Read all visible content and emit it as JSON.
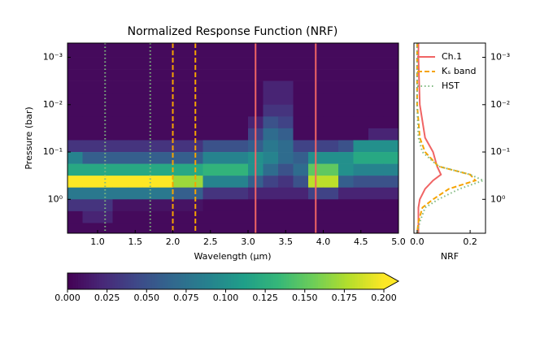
{
  "chart_data": [
    {
      "type": "heatmap",
      "title": "Normalized Response Function (NRF)",
      "xlabel": "Wavelength (μm)",
      "ylabel": "Pressure (bar)",
      "xlim": [
        0.6,
        5.0
      ],
      "ylim": [
        0.0005,
        5.2
      ],
      "log_y": true,
      "xticks": [
        {
          "value": 1,
          "label": "1.0"
        },
        1.5,
        {
          "value": 2,
          "label": "2.0"
        },
        2.5,
        {
          "value": 3,
          "label": "3.0"
        },
        3.5,
        {
          "value": 4,
          "label": "4.0"
        },
        4.5,
        {
          "value": 5,
          "label": "5.0"
        }
      ],
      "yticks": [
        {
          "value": 0.001,
          "label": "10⁻³"
        },
        {
          "value": 0.01,
          "label": "10⁻²"
        },
        {
          "value": 0.1,
          "label": "10⁻¹"
        },
        {
          "value": 1,
          "label": "10⁰"
        }
      ],
      "x_edges": [
        0.6,
        0.8,
        1.0,
        1.2,
        1.4,
        1.6,
        1.8,
        2.0,
        2.2,
        2.4,
        2.6,
        2.8,
        3.0,
        3.2,
        3.4,
        3.6,
        3.8,
        4.0,
        4.2,
        4.4,
        4.6,
        4.8,
        5.0
      ],
      "y_edges": [
        0.0005,
        0.001,
        0.00178,
        0.00316,
        0.00562,
        0.01,
        0.0178,
        0.0316,
        0.0562,
        0.1,
        0.178,
        0.316,
        0.562,
        1,
        1.78,
        3.16,
        5.2
      ],
      "values": [
        [
          0.005,
          0.005,
          0.005,
          0.005,
          0.005,
          0.005,
          0.005,
          0.005,
          0.005,
          0.005,
          0.005,
          0.005,
          0.005,
          0.005,
          0.005,
          0.005,
          0.005,
          0.005,
          0.005,
          0.005,
          0.005,
          0.005
        ],
        [
          0.005,
          0.005,
          0.005,
          0.005,
          0.005,
          0.005,
          0.005,
          0.005,
          0.005,
          0.005,
          0.005,
          0.005,
          0.005,
          0.005,
          0.005,
          0.005,
          0.005,
          0.005,
          0.005,
          0.005,
          0.005,
          0.005
        ],
        [
          0.005,
          0.005,
          0.005,
          0.005,
          0.005,
          0.005,
          0.005,
          0.005,
          0.005,
          0.005,
          0.005,
          0.005,
          0.005,
          0.005,
          0.005,
          0.005,
          0.005,
          0.005,
          0.005,
          0.005,
          0.005,
          0.005
        ],
        [
          0.005,
          0.005,
          0.005,
          0.005,
          0.005,
          0.005,
          0.005,
          0.005,
          0.005,
          0.005,
          0.005,
          0.005,
          0.005,
          0.02,
          0.02,
          0.005,
          0.005,
          0.005,
          0.005,
          0.005,
          0.005,
          0.005
        ],
        [
          0.005,
          0.005,
          0.005,
          0.005,
          0.005,
          0.005,
          0.005,
          0.005,
          0.005,
          0.005,
          0.005,
          0.005,
          0.005,
          0.02,
          0.02,
          0.005,
          0.005,
          0.005,
          0.005,
          0.005,
          0.005,
          0.005
        ],
        [
          0.005,
          0.005,
          0.005,
          0.005,
          0.005,
          0.005,
          0.005,
          0.005,
          0.005,
          0.005,
          0.005,
          0.005,
          0.005,
          0.03,
          0.03,
          0.005,
          0.005,
          0.005,
          0.005,
          0.005,
          0.005,
          0.005
        ],
        [
          0.005,
          0.005,
          0.005,
          0.005,
          0.005,
          0.005,
          0.005,
          0.005,
          0.005,
          0.005,
          0.005,
          0.005,
          0.02,
          0.05,
          0.04,
          0.005,
          0.005,
          0.005,
          0.005,
          0.005,
          0.005,
          0.005
        ],
        [
          0.005,
          0.005,
          0.005,
          0.005,
          0.005,
          0.005,
          0.005,
          0.005,
          0.005,
          0.005,
          0.005,
          0.005,
          0.04,
          0.07,
          0.06,
          0.005,
          0.005,
          0.005,
          0.005,
          0.005,
          0.02,
          0.02
        ],
        [
          0.03,
          0.03,
          0.03,
          0.03,
          0.03,
          0.03,
          0.03,
          0.03,
          0.03,
          0.05,
          0.05,
          0.05,
          0.06,
          0.08,
          0.07,
          0.04,
          0.04,
          0.04,
          0.05,
          0.1,
          0.1,
          0.1
        ],
        [
          0.09,
          0.06,
          0.06,
          0.06,
          0.06,
          0.06,
          0.06,
          0.06,
          0.06,
          0.09,
          0.09,
          0.09,
          0.1,
          0.09,
          0.07,
          0.06,
          0.1,
          0.1,
          0.1,
          0.12,
          0.12,
          0.12
        ],
        [
          0.12,
          0.12,
          0.12,
          0.12,
          0.12,
          0.12,
          0.12,
          0.12,
          0.12,
          0.13,
          0.13,
          0.13,
          0.1,
          0.07,
          0.05,
          0.07,
          0.15,
          0.15,
          0.1,
          0.09,
          0.09,
          0.09
        ],
        [
          0.2,
          0.2,
          0.2,
          0.2,
          0.2,
          0.2,
          0.2,
          0.17,
          0.17,
          0.09,
          0.09,
          0.09,
          0.06,
          0.04,
          0.03,
          0.05,
          0.18,
          0.18,
          0.06,
          0.05,
          0.05,
          0.05
        ],
        [
          0.08,
          0.08,
          0.08,
          0.08,
          0.08,
          0.08,
          0.08,
          0.06,
          0.06,
          0.03,
          0.03,
          0.03,
          0.02,
          0.02,
          0.02,
          0.02,
          0.04,
          0.04,
          0.02,
          0.02,
          0.02,
          0.02
        ],
        [
          0.03,
          0.03,
          0.03,
          0.01,
          0.01,
          0.01,
          0.01,
          0.01,
          0.01,
          0.005,
          0.005,
          0.005,
          0.005,
          0.005,
          0.005,
          0.005,
          0.005,
          0.005,
          0.005,
          0.005,
          0.005,
          0.005
        ],
        [
          0.005,
          0.02,
          0.02,
          0.005,
          0.005,
          0.005,
          0.005,
          0.005,
          0.005,
          0.005,
          0.005,
          0.005,
          0.005,
          0.005,
          0.005,
          0.005,
          0.005,
          0.005,
          0.005,
          0.005,
          0.005,
          0.005
        ],
        [
          0.005,
          0.005,
          0.005,
          0.005,
          0.005,
          0.005,
          0.005,
          0.005,
          0.005,
          0.005,
          0.005,
          0.005,
          0.005,
          0.005,
          0.005,
          0.005,
          0.005,
          0.005,
          0.005,
          0.005,
          0.005,
          0.005
        ]
      ],
      "colormap": "viridis",
      "colorbar": {
        "lim": [
          0,
          0.2
        ],
        "extend": "max",
        "ticks": [
          {
            "value": 0,
            "label": "0.000"
          },
          {
            "value": 0.025,
            "label": "0.025"
          },
          {
            "value": 0.05,
            "label": "0.050"
          },
          {
            "value": 0.075,
            "label": "0.075"
          },
          {
            "value": 0.1,
            "label": "0.100"
          },
          {
            "value": 0.125,
            "label": "0.125"
          },
          {
            "value": 0.15,
            "label": "0.150"
          },
          {
            "value": 0.175,
            "label": "0.175"
          },
          {
            "value": 0.2,
            "label": "0.200"
          }
        ]
      }
    },
    {
      "type": "line",
      "xlabel": "NRF",
      "xlim": [
        -0.012,
        0.258
      ],
      "ylim": [
        0.0005,
        5.2
      ],
      "log_y": true,
      "xticks": [
        {
          "value": 0,
          "label": "0.0"
        },
        0.2
      ],
      "yticks": [
        {
          "value": 0.001,
          "label": "10⁻³"
        },
        {
          "value": 0.01,
          "label": "10⁻²"
        },
        {
          "value": 0.1,
          "label": "10⁻¹"
        },
        {
          "value": 1,
          "label": "10⁰"
        }
      ],
      "legend": "upper right",
      "y": [
        0.0005,
        0.001,
        0.01,
        0.05,
        0.1,
        0.2,
        0.3,
        0.4,
        0.6,
        1,
        1.5,
        3,
        5.2
      ],
      "series": [
        {
          "name": "Ch.1",
          "color": "#f06464",
          "dash": "solid",
          "band": [
            3.1,
            3.9
          ],
          "values": [
            0.005,
            0.005,
            0.01,
            0.03,
            0.06,
            0.075,
            0.09,
            0.06,
            0.03,
            0.01,
            0.005,
            0.005,
            0.005
          ]
        },
        {
          "name": "Kₛ band",
          "color": "#f5a300",
          "dash": "dashed",
          "band": [
            2.0,
            2.3
          ],
          "values": [
            0,
            0,
            0,
            0.01,
            0.03,
            0.08,
            0.2,
            0.22,
            0.12,
            0.06,
            0.02,
            0.005,
            0
          ]
        },
        {
          "name": "HST",
          "color": "#7fb97f",
          "dash": "dotted",
          "band": [
            1.1,
            1.7
          ],
          "values": [
            0,
            0,
            0,
            0.005,
            0.02,
            0.08,
            0.2,
            0.25,
            0.16,
            0.08,
            0.03,
            0.01,
            0
          ]
        }
      ]
    }
  ]
}
